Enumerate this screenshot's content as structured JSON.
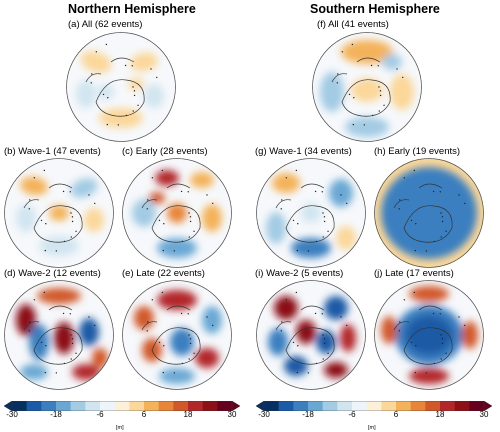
{
  "north": {
    "title": "Northern Hemisphere",
    "panels": [
      {
        "label": "(a)        All (62 events)"
      },
      {
        "label": "(b)    Wave-1 (47 events)"
      },
      {
        "label": "(c)    Early (28 events)"
      },
      {
        "label": "(d)   Wave-2 (12 events)"
      },
      {
        "label": "(e)     Late (22 events)"
      }
    ]
  },
  "south": {
    "title": "Southern Hemisphere",
    "panels": [
      {
        "label": "(f)        All (41 events)"
      },
      {
        "label": "(g)       Wave-1 (34 events)"
      },
      {
        "label": "(h)     Early (19 events)"
      },
      {
        "label": "(i)   Wave-2 (5 events)"
      },
      {
        "label": "(j)      Late (17 events)"
      }
    ]
  },
  "colorbar": {
    "ticks": [
      "-30",
      "-18",
      "-6",
      "6",
      "18",
      "30"
    ],
    "unit": "[m]",
    "min": -30,
    "max": 30,
    "colors": [
      "#053061",
      "#1a5aa6",
      "#3b7fc0",
      "#6aa8d4",
      "#a3cbe4",
      "#d1e5f0",
      "#eef5fa",
      "#fdf0d8",
      "#fbd79a",
      "#f4b25a",
      "#e8853a",
      "#d15829",
      "#b2272a",
      "#8c1015",
      "#67001f"
    ]
  }
}
